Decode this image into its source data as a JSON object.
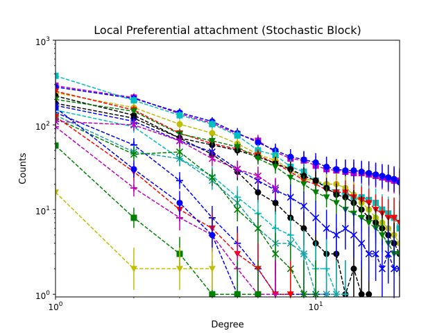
{
  "chart_data": {
    "type": "line",
    "title": "Local Preferential attachment (Stochastic Block)",
    "xlabel": "Degree",
    "ylabel": "Counts",
    "xscale": "log",
    "yscale": "log",
    "xlim": [
      1,
      21
    ],
    "ylim": [
      0.93,
      1000
    ],
    "x_ticks": [
      {
        "value": 1,
        "base": "10",
        "exp": "0"
      },
      {
        "value": 10,
        "base": "10",
        "exp": "1"
      }
    ],
    "y_ticks": [
      {
        "value": 1,
        "base": "10",
        "exp": "0"
      },
      {
        "value": 10,
        "base": "10",
        "exp": "1"
      },
      {
        "value": 100,
        "base": "10",
        "exp": "2"
      },
      {
        "value": 1000,
        "base": "10",
        "exp": "3"
      }
    ],
    "series": [
      {
        "name": "magenta-square",
        "color": "#bf00bf",
        "marker": "square",
        "x": [
          1,
          2,
          3,
          4,
          5,
          6,
          7,
          8,
          9,
          10,
          11,
          12,
          13,
          14,
          15,
          16,
          17,
          18,
          19,
          20,
          21
        ],
        "y": [
          290,
          210,
          135,
          105,
          78,
          65,
          48,
          40,
          38,
          33,
          30,
          29,
          28,
          27,
          27,
          26,
          25,
          24,
          23,
          22,
          22
        ],
        "err": [
          0.06,
          0.05,
          0.05,
          0.05,
          0.06,
          0.07,
          0.08,
          0.09,
          0.1,
          0.11,
          0.12,
          0.12,
          0.13,
          0.13,
          0.13,
          0.14,
          0.14,
          0.14,
          0.15,
          0.15,
          0.15
        ]
      },
      {
        "name": "blue-circle",
        "color": "#0000ff",
        "marker": "circle",
        "x": [
          1,
          2,
          3,
          4,
          5,
          6,
          7,
          8,
          9,
          10,
          11,
          12,
          13,
          14,
          15,
          16,
          17,
          18,
          19,
          20,
          21
        ],
        "y": [
          280,
          205,
          140,
          110,
          80,
          62,
          50,
          42,
          39,
          36,
          32,
          30,
          29,
          29,
          28,
          27,
          26,
          25,
          24,
          23,
          21
        ],
        "err": [
          0.06,
          0.05,
          0.05,
          0.05,
          0.06,
          0.07,
          0.08,
          0.09,
          0.1,
          0.11,
          0.12,
          0.12,
          0.13,
          0.13,
          0.13,
          0.14,
          0.14,
          0.14,
          0.15,
          0.15,
          0.15
        ]
      },
      {
        "name": "cyan-square",
        "color": "#00bfbf",
        "marker": "square",
        "x": [
          1,
          2,
          3,
          4,
          5,
          6,
          7,
          8,
          9,
          10,
          11,
          12,
          13,
          14,
          15,
          16,
          17,
          18,
          19,
          20,
          21
        ],
        "y": [
          380,
          195,
          130,
          102,
          75,
          50,
          44,
          32,
          28,
          22,
          19,
          16,
          15,
          14,
          14,
          13,
          12,
          10,
          9,
          8,
          6
        ],
        "err": [
          0.06,
          0.05,
          0.05,
          0.05,
          0.06,
          0.07,
          0.08,
          0.09,
          0.1,
          0.11,
          0.12,
          0.13,
          0.14,
          0.14,
          0.15,
          0.16,
          0.17,
          0.18,
          0.2,
          0.22,
          0.25
        ]
      },
      {
        "name": "yellow-circle",
        "color": "#bfbf00",
        "marker": "circle",
        "x": [
          1,
          2,
          3,
          4,
          5,
          6,
          7,
          8,
          9,
          10,
          11,
          12,
          13,
          14,
          15,
          16,
          17,
          18,
          19,
          20,
          21
        ],
        "y": [
          240,
          160,
          102,
          80,
          60,
          45,
          38,
          30,
          23,
          22,
          20,
          20,
          18,
          15,
          12,
          10,
          8,
          7,
          6,
          5,
          4
        ],
        "err": [
          0.06,
          0.05,
          0.05,
          0.06,
          0.06,
          0.07,
          0.08,
          0.09,
          0.1,
          0.11,
          0.12,
          0.13,
          0.14,
          0.15,
          0.16,
          0.17,
          0.18,
          0.2,
          0.22,
          0.24,
          0.26
        ]
      },
      {
        "name": "red-star",
        "color": "#ff0000",
        "marker": "tri",
        "x": [
          1,
          2,
          3,
          4,
          5,
          6,
          7,
          8,
          9,
          10,
          11,
          12,
          13,
          14,
          15,
          16,
          17,
          18,
          19,
          20,
          21
        ],
        "y": [
          250,
          150,
          80,
          60,
          52,
          44,
          35,
          28,
          22,
          20,
          17,
          16,
          16,
          14,
          13,
          12,
          10,
          9,
          8,
          8,
          7
        ],
        "err": [
          0.06,
          0.05,
          0.05,
          0.06,
          0.06,
          0.07,
          0.08,
          0.09,
          0.1,
          0.11,
          0.12,
          0.13,
          0.14,
          0.15,
          0.16,
          0.17,
          0.18,
          0.2,
          0.22,
          0.24,
          0.26
        ]
      },
      {
        "name": "black-hex",
        "color": "#000000",
        "marker": "circle",
        "x": [
          1,
          2,
          3,
          4,
          5,
          6,
          7,
          8,
          9,
          10,
          11,
          12,
          13,
          14,
          15,
          16,
          17,
          18,
          19,
          20,
          21
        ],
        "y": [
          220,
          130,
          70,
          58,
          50,
          42,
          35,
          30,
          25,
          22,
          18,
          15,
          14,
          12,
          10,
          8,
          7,
          6,
          5,
          4,
          3
        ],
        "err": [
          0.06,
          0.05,
          0.05,
          0.06,
          0.06,
          0.07,
          0.08,
          0.09,
          0.1,
          0.11,
          0.12,
          0.13,
          0.14,
          0.15,
          0.16,
          0.17,
          0.18,
          0.2,
          0.22,
          0.24,
          0.26
        ]
      },
      {
        "name": "green-tri",
        "color": "#008000",
        "marker": "tri",
        "x": [
          1,
          2,
          3,
          4,
          5,
          6,
          7,
          8,
          9,
          10,
          11,
          12,
          13,
          14,
          15,
          16,
          17,
          18,
          19,
          20,
          21
        ],
        "y": [
          200,
          145,
          78,
          65,
          55,
          40,
          32,
          24,
          20,
          16,
          14,
          12,
          10,
          9,
          8,
          7,
          6,
          5,
          4,
          3,
          3
        ],
        "err": [
          0.06,
          0.05,
          0.05,
          0.06,
          0.06,
          0.07,
          0.08,
          0.09,
          0.1,
          0.11,
          0.12,
          0.13,
          0.14,
          0.15,
          0.16,
          0.17,
          0.18,
          0.2,
          0.22,
          0.24,
          0.26
        ]
      },
      {
        "name": "black-circle",
        "color": "#000000",
        "marker": "circle",
        "x": [
          1,
          2,
          3,
          4,
          5,
          6,
          7,
          8,
          9,
          10,
          11,
          12,
          13,
          14,
          15,
          16
        ],
        "y": [
          180,
          120,
          70,
          45,
          28,
          16,
          12,
          8,
          6,
          4,
          3,
          3,
          1,
          2,
          1,
          1
        ],
        "err": [
          0.06,
          0.06,
          0.07,
          0.08,
          0.1,
          0.12,
          0.14,
          0.17,
          0.2,
          0.25,
          0.3,
          0.3,
          0.4,
          0.35,
          0.4,
          0.4
        ]
      },
      {
        "name": "blue-x",
        "color": "#0000ff",
        "marker": "x",
        "x": [
          1,
          2,
          3,
          4,
          5,
          6,
          7,
          8,
          9,
          10,
          11,
          12,
          13,
          14,
          15,
          16,
          17,
          18,
          19,
          20,
          21
        ],
        "y": [
          170,
          110,
          65,
          48,
          30,
          22,
          17,
          14,
          11,
          8,
          6,
          5,
          6,
          5,
          4,
          3,
          3,
          2,
          3,
          2,
          2
        ],
        "err": [
          0.06,
          0.06,
          0.07,
          0.08,
          0.1,
          0.12,
          0.13,
          0.15,
          0.17,
          0.2,
          0.22,
          0.25,
          0.25,
          0.27,
          0.3,
          0.32,
          0.32,
          0.35,
          0.35,
          0.4,
          0.4
        ]
      },
      {
        "name": "blue-plus",
        "color": "#0000ff",
        "marker": "plus",
        "x": [
          1,
          2,
          3,
          4,
          5,
          6,
          7,
          8,
          9,
          10,
          11
        ],
        "y": [
          140,
          58,
          22,
          8,
          4,
          2,
          1,
          1,
          1,
          1,
          1
        ],
        "err": [
          0.06,
          0.08,
          0.1,
          0.14,
          0.2,
          0.3,
          0.4,
          0.4,
          0.4,
          0.4,
          0.4
        ]
      },
      {
        "name": "cyan-plus",
        "color": "#00bfbf",
        "marker": "plus",
        "x": [
          1,
          2,
          3,
          4,
          5,
          6,
          7,
          8,
          9,
          10,
          11,
          12,
          13
        ],
        "y": [
          150,
          95,
          40,
          25,
          14,
          9,
          6,
          5,
          3,
          2,
          2,
          1,
          1
        ],
        "err": [
          0.06,
          0.07,
          0.09,
          0.11,
          0.13,
          0.16,
          0.2,
          0.22,
          0.28,
          0.32,
          0.35,
          0.4,
          0.4
        ]
      },
      {
        "name": "teal-x",
        "color": "#20a0a0",
        "marker": "x",
        "x": [
          1,
          2,
          3,
          4,
          5,
          6,
          7,
          8,
          9,
          10,
          11,
          12
        ],
        "y": [
          130,
          48,
          40,
          22,
          12,
          6,
          4,
          4,
          3,
          1,
          1,
          1
        ],
        "err": [
          0.06,
          0.08,
          0.09,
          0.11,
          0.14,
          0.18,
          0.22,
          0.22,
          0.28,
          0.4,
          0.4,
          0.4
        ]
      },
      {
        "name": "green-x",
        "color": "#008000",
        "marker": "x",
        "x": [
          1,
          2,
          3,
          4,
          5,
          6,
          7,
          8,
          9,
          10
        ],
        "y": [
          120,
          45,
          48,
          24,
          10,
          6,
          3,
          2,
          1,
          1
        ],
        "err": [
          0.06,
          0.08,
          0.08,
          0.1,
          0.14,
          0.18,
          0.25,
          0.3,
          0.4,
          0.4
        ]
      },
      {
        "name": "red-tri",
        "color": "#ff0000",
        "marker": "tri",
        "x": [
          1,
          2,
          3,
          4,
          5,
          6,
          7,
          8
        ],
        "y": [
          125,
          28,
          10,
          6,
          3,
          2,
          1,
          1
        ],
        "err": [
          0.06,
          0.1,
          0.14,
          0.18,
          0.25,
          0.3,
          0.4,
          0.4
        ]
      },
      {
        "name": "magenta-plus",
        "color": "#bf00bf",
        "marker": "plus",
        "x": [
          1,
          2,
          3,
          4,
          5,
          6,
          7
        ],
        "y": [
          95,
          18,
          8,
          5,
          2,
          1,
          1
        ],
        "err": [
          0.07,
          0.1,
          0.15,
          0.2,
          0.3,
          0.4,
          0.4
        ]
      },
      {
        "name": "magenta-x",
        "color": "#bf00bf",
        "marker": "x",
        "x": [
          1,
          2,
          3,
          4,
          5,
          6,
          7
        ],
        "y": [
          110,
          100,
          65,
          40,
          30,
          25,
          18
        ],
        "err": [
          0.06,
          0.07,
          0.08,
          0.09,
          0.1,
          0.11,
          0.12
        ]
      },
      {
        "name": "blue-circle-small",
        "color": "#0000ff",
        "marker": "circle",
        "x": [
          1,
          2,
          3,
          4,
          5
        ],
        "y": [
          160,
          30,
          12,
          5,
          1
        ],
        "err": [
          0.06,
          0.1,
          0.14,
          0.2,
          0.4
        ]
      },
      {
        "name": "green-square",
        "color": "#008000",
        "marker": "square",
        "x": [
          1,
          2,
          3,
          4,
          5,
          6
        ],
        "y": [
          57,
          8,
          3,
          1,
          1,
          1
        ],
        "err": [
          0.07,
          0.12,
          0.2,
          0.4,
          0.4,
          0.4
        ]
      },
      {
        "name": "yellow-star",
        "color": "#bfbf00",
        "marker": "tri",
        "x": [
          1,
          2,
          3,
          4
        ],
        "y": [
          16,
          2,
          2,
          2
        ],
        "err": [
          0.1,
          0.25,
          0.25,
          0.25
        ]
      }
    ]
  }
}
